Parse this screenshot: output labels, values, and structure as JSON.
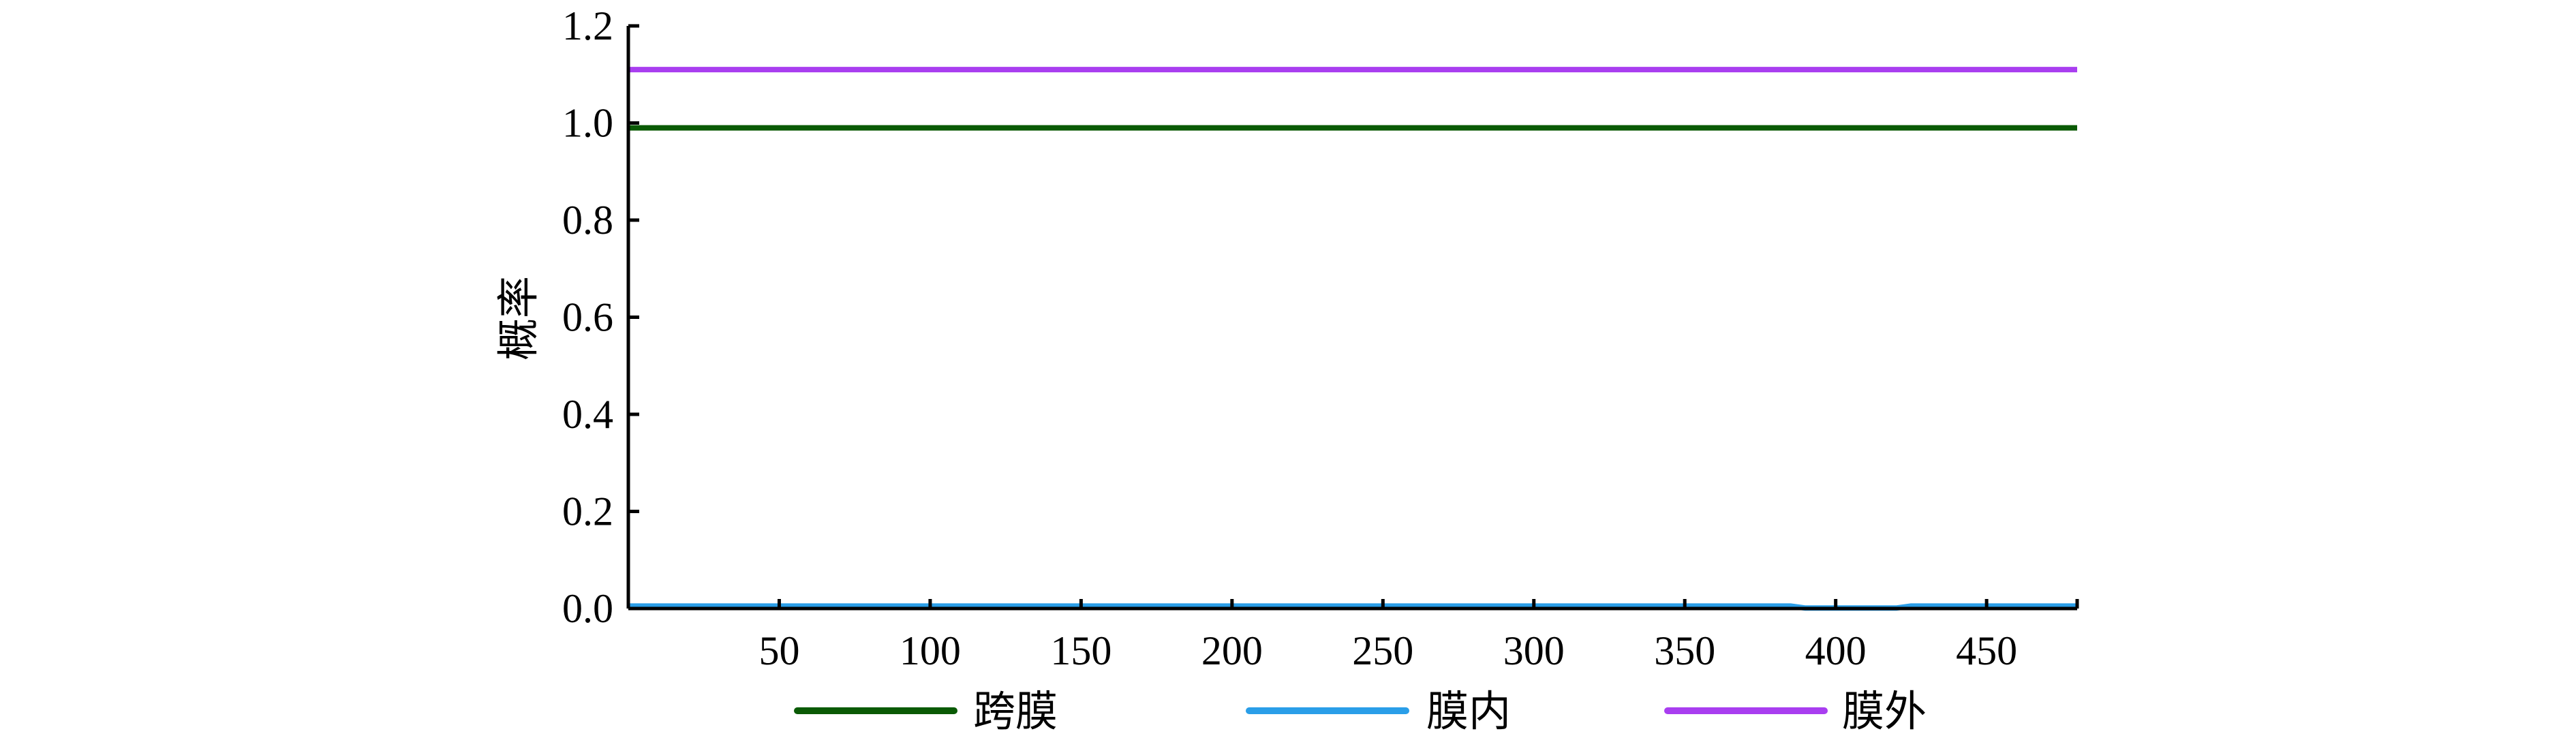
{
  "chart_data": {
    "type": "line",
    "title": "",
    "xlabel": "",
    "ylabel": "概率",
    "xlim": [
      0,
      480
    ],
    "ylim": [
      0,
      1.2
    ],
    "xticks": [
      50,
      100,
      150,
      200,
      250,
      300,
      350,
      400,
      450
    ],
    "yticks": [
      "0.0",
      "0.2",
      "0.4",
      "0.6",
      "0.8",
      "1.0",
      "1.2"
    ],
    "grid": false,
    "legend_position": "bottom",
    "series": [
      {
        "name": "跨膜",
        "color": "#0a5a05",
        "x": [
          0,
          480
        ],
        "y": [
          0.99,
          0.99
        ]
      },
      {
        "name": "膜内",
        "color": "#2a9ee8",
        "x": [
          0,
          385,
          390,
          420,
          425,
          480
        ],
        "y": [
          0.005,
          0.005,
          0.001,
          0.001,
          0.005,
          0.005
        ]
      },
      {
        "name": "膜外",
        "color": "#a93ef0",
        "x": [
          0,
          480
        ],
        "y": [
          1.11,
          1.11
        ]
      }
    ]
  }
}
